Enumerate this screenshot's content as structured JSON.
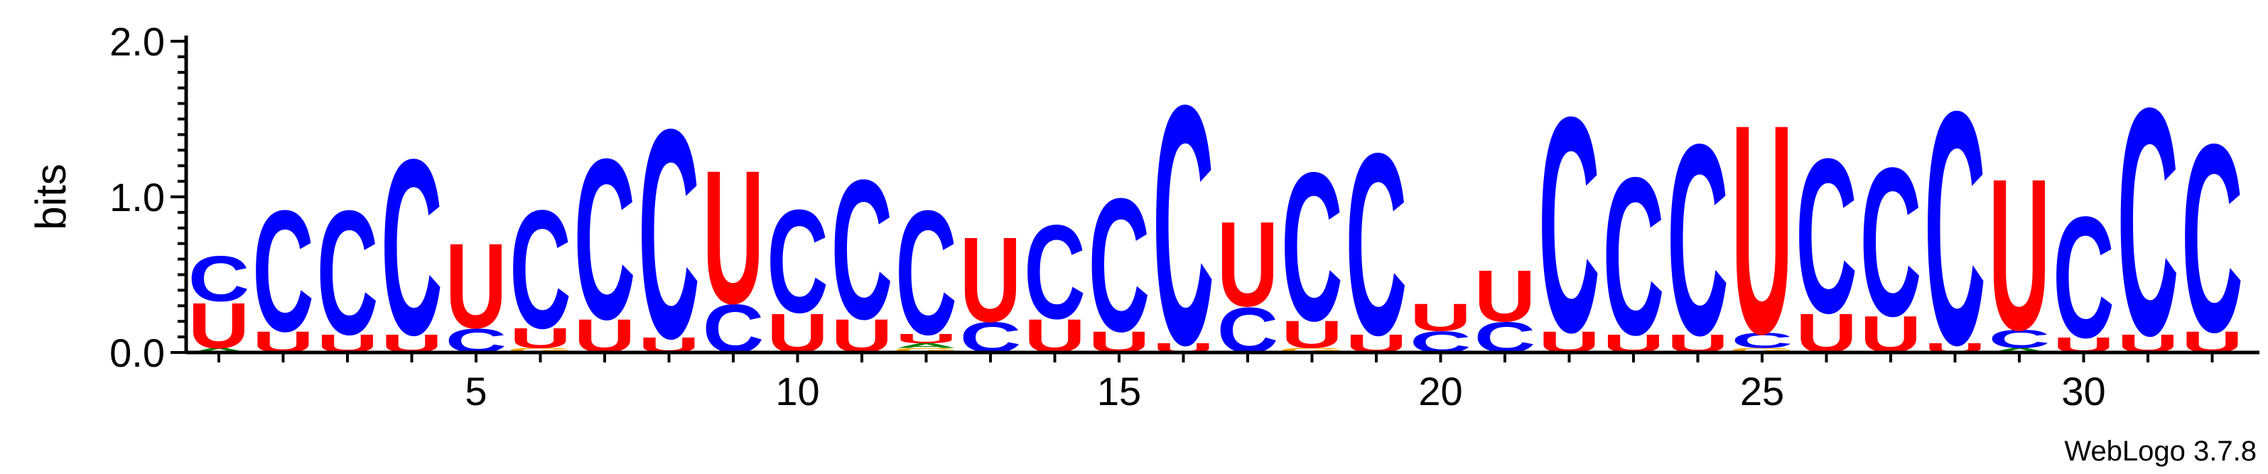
{
  "chart_data": {
    "type": "sequence-logo",
    "ylabel": "bits",
    "ylim": [
      0,
      2
    ],
    "yticks": [
      "0.0",
      "1.0",
      "2.0"
    ],
    "xticks": [
      "5",
      "10",
      "15",
      "20",
      "25",
      "30"
    ],
    "xtick_positions": [
      5,
      10,
      15,
      20,
      25,
      30
    ],
    "positions": 32,
    "credit": "WebLogo 3.7.8",
    "colors": {
      "C": "#0000ff",
      "U": "#ff0000",
      "A": "#008000",
      "G": "#ffa500"
    },
    "columns": [
      {
        "pos": 1,
        "letters": [
          {
            "base": "A",
            "bits": 0.03
          },
          {
            "base": "U",
            "bits": 0.3
          },
          {
            "base": "C",
            "bits": 0.3
          }
        ]
      },
      {
        "pos": 2,
        "letters": [
          {
            "base": "U",
            "bits": 0.14
          },
          {
            "base": "C",
            "bits": 0.8
          }
        ]
      },
      {
        "pos": 3,
        "letters": [
          {
            "base": "U",
            "bits": 0.12
          },
          {
            "base": "C",
            "bits": 0.82
          }
        ]
      },
      {
        "pos": 4,
        "letters": [
          {
            "base": "U",
            "bits": 0.12
          },
          {
            "base": "C",
            "bits": 1.16
          }
        ]
      },
      {
        "pos": 5,
        "letters": [
          {
            "base": "C",
            "bits": 0.16
          },
          {
            "base": "U",
            "bits": 0.56
          }
        ]
      },
      {
        "pos": 6,
        "letters": [
          {
            "base": "G",
            "bits": 0.03
          },
          {
            "base": "U",
            "bits": 0.13
          },
          {
            "base": "C",
            "bits": 0.78
          }
        ]
      },
      {
        "pos": 7,
        "letters": [
          {
            "base": "U",
            "bits": 0.22
          },
          {
            "base": "C",
            "bits": 1.06
          }
        ]
      },
      {
        "pos": 8,
        "letters": [
          {
            "base": "U",
            "bits": 0.1
          },
          {
            "base": "C",
            "bits": 1.38
          }
        ]
      },
      {
        "pos": 9,
        "letters": [
          {
            "base": "C",
            "bits": 0.32
          },
          {
            "base": "U",
            "bits": 0.88
          }
        ]
      },
      {
        "pos": 10,
        "letters": [
          {
            "base": "U",
            "bits": 0.26
          },
          {
            "base": "C",
            "bits": 0.68
          }
        ]
      },
      {
        "pos": 11,
        "letters": [
          {
            "base": "U",
            "bits": 0.22
          },
          {
            "base": "C",
            "bits": 0.92
          }
        ]
      },
      {
        "pos": 12,
        "letters": [
          {
            "base": "G",
            "bits": 0.03
          },
          {
            "base": "A",
            "bits": 0.03
          },
          {
            "base": "U",
            "bits": 0.06
          },
          {
            "base": "C",
            "bits": 0.82
          }
        ]
      },
      {
        "pos": 13,
        "letters": [
          {
            "base": "C",
            "bits": 0.2
          },
          {
            "base": "U",
            "bits": 0.56
          }
        ]
      },
      {
        "pos": 14,
        "letters": [
          {
            "base": "U",
            "bits": 0.22
          },
          {
            "base": "C",
            "bits": 0.62
          }
        ]
      },
      {
        "pos": 15,
        "letters": [
          {
            "base": "U",
            "bits": 0.14
          },
          {
            "base": "C",
            "bits": 0.88
          }
        ]
      },
      {
        "pos": 16,
        "letters": [
          {
            "base": "U",
            "bits": 0.06
          },
          {
            "base": "C",
            "bits": 1.58
          }
        ]
      },
      {
        "pos": 17,
        "letters": [
          {
            "base": "C",
            "bits": 0.3
          },
          {
            "base": "U",
            "bits": 0.56
          }
        ]
      },
      {
        "pos": 18,
        "letters": [
          {
            "base": "G",
            "bits": 0.03
          },
          {
            "base": "U",
            "bits": 0.18
          },
          {
            "base": "C",
            "bits": 0.98
          }
        ]
      },
      {
        "pos": 19,
        "letters": [
          {
            "base": "U",
            "bits": 0.12
          },
          {
            "base": "C",
            "bits": 1.2
          }
        ]
      },
      {
        "pos": 20,
        "letters": [
          {
            "base": "C",
            "bits": 0.14
          },
          {
            "base": "U",
            "bits": 0.18
          }
        ]
      },
      {
        "pos": 21,
        "letters": [
          {
            "base": "C",
            "bits": 0.2
          },
          {
            "base": "U",
            "bits": 0.34
          }
        ]
      },
      {
        "pos": 22,
        "letters": [
          {
            "base": "U",
            "bits": 0.14
          },
          {
            "base": "C",
            "bits": 1.42
          }
        ]
      },
      {
        "pos": 23,
        "letters": [
          {
            "base": "U",
            "bits": 0.12
          },
          {
            "base": "C",
            "bits": 1.04
          }
        ]
      },
      {
        "pos": 24,
        "letters": [
          {
            "base": "U",
            "bits": 0.12
          },
          {
            "base": "C",
            "bits": 1.26
          }
        ]
      },
      {
        "pos": 25,
        "letters": [
          {
            "base": "G",
            "bits": 0.03
          },
          {
            "base": "C",
            "bits": 0.1
          },
          {
            "base": "U",
            "bits": 1.38
          }
        ]
      },
      {
        "pos": 26,
        "letters": [
          {
            "base": "U",
            "bits": 0.26
          },
          {
            "base": "C",
            "bits": 1.02
          }
        ]
      },
      {
        "pos": 27,
        "letters": [
          {
            "base": "U",
            "bits": 0.24
          },
          {
            "base": "C",
            "bits": 0.98
          }
        ]
      },
      {
        "pos": 28,
        "letters": [
          {
            "base": "U",
            "bits": 0.06
          },
          {
            "base": "C",
            "bits": 1.54
          }
        ]
      },
      {
        "pos": 29,
        "letters": [
          {
            "base": "A",
            "bits": 0.03
          },
          {
            "base": "C",
            "bits": 0.12
          },
          {
            "base": "U",
            "bits": 1.0
          }
        ]
      },
      {
        "pos": 30,
        "letters": [
          {
            "base": "U",
            "bits": 0.1
          },
          {
            "base": "C",
            "bits": 0.8
          }
        ]
      },
      {
        "pos": 31,
        "letters": [
          {
            "base": "U",
            "bits": 0.12
          },
          {
            "base": "C",
            "bits": 1.5
          }
        ]
      },
      {
        "pos": 32,
        "letters": [
          {
            "base": "U",
            "bits": 0.14
          },
          {
            "base": "C",
            "bits": 1.24
          }
        ]
      }
    ]
  }
}
